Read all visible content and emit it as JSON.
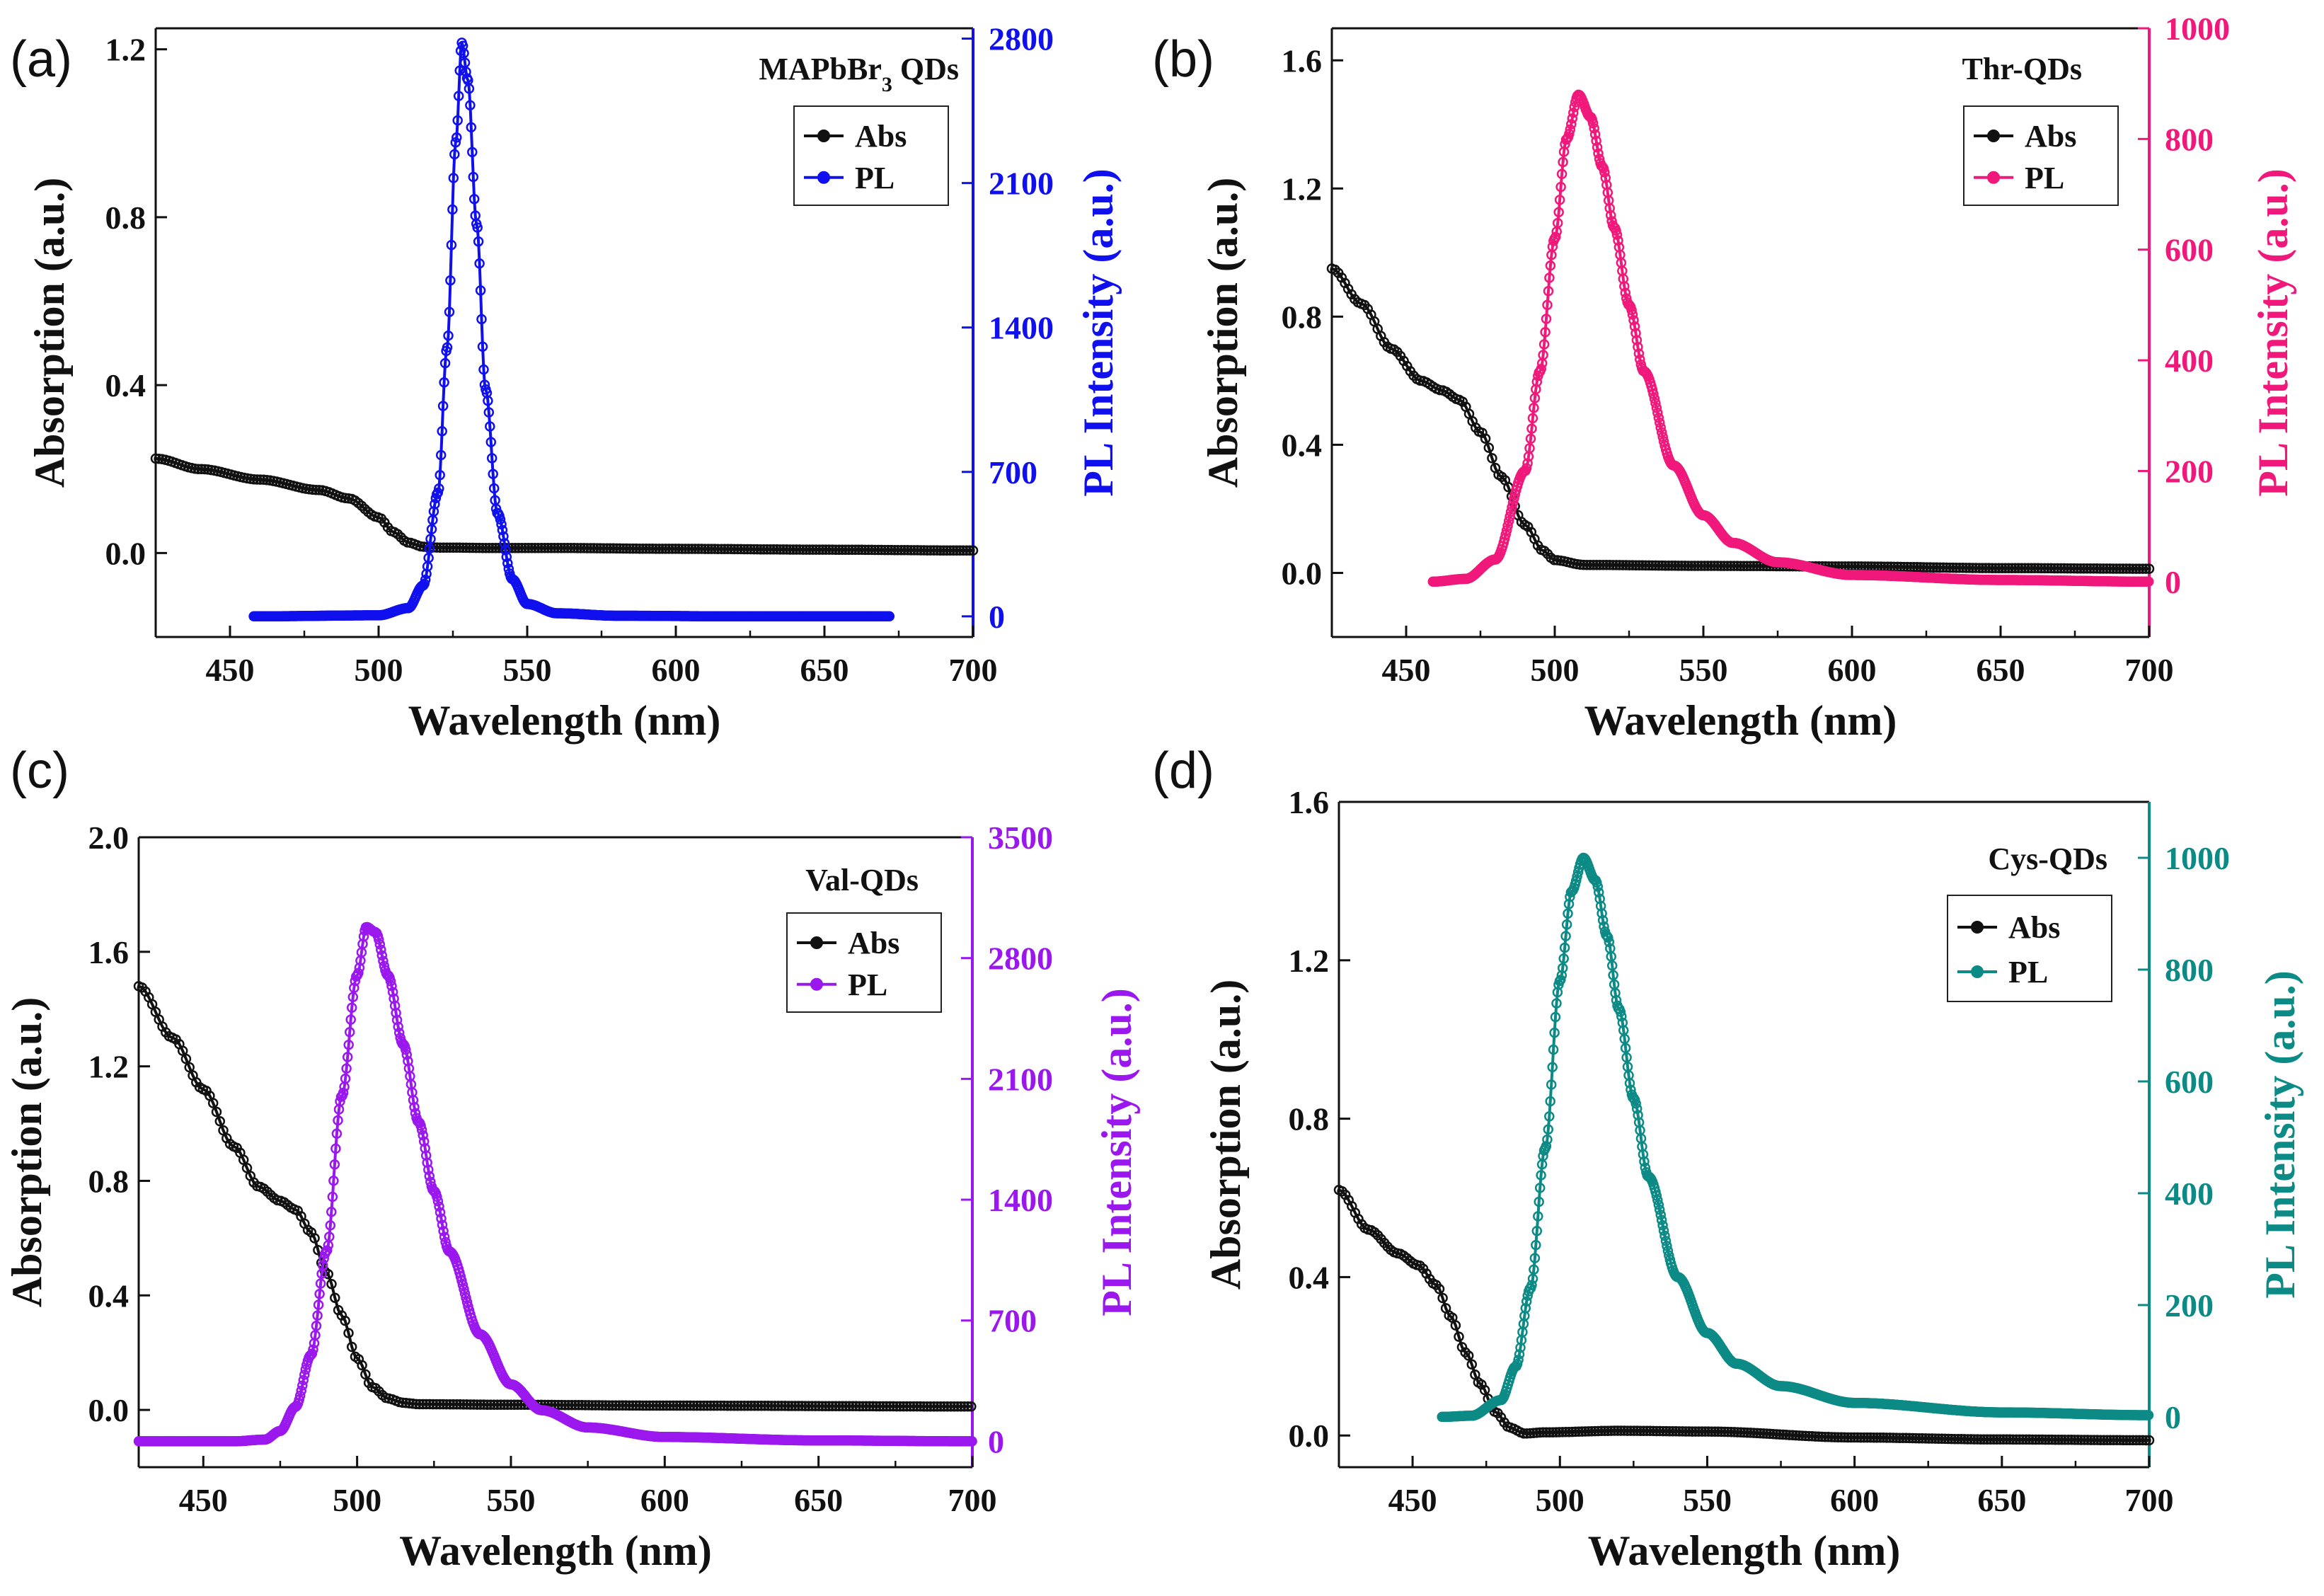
{
  "figure": {
    "panels": [
      "(a)",
      "(b)",
      "(c)",
      "(d)"
    ]
  },
  "chart_data": [
    {
      "type": "line",
      "panel": "(a)",
      "title": "MAPbBr3 QDs",
      "title_main": "MAPbBr",
      "title_sub": "3",
      "title_tail": " QDs",
      "xlabel": "Wavelength (nm)",
      "ylabel_left": "Absorption (a.u.)",
      "ylabel_right": "PL Intensity (a.u.)",
      "xlim": [
        425,
        700
      ],
      "xticks": [
        450,
        500,
        550,
        600,
        650,
        700
      ],
      "ylim_left": [
        -0.2,
        1.25
      ],
      "yticks_left": [
        "0.0",
        "0.4",
        "0.8",
        "1.2"
      ],
      "ytick_values_left": [
        0.0,
        0.4,
        0.8,
        1.2
      ],
      "ylim_right": [
        -100,
        2850
      ],
      "yticks_right": [
        "0",
        "700",
        "1400",
        "2100",
        "2800"
      ],
      "ytick_values_right": [
        0,
        700,
        1400,
        2100,
        2800
      ],
      "pl_color": "#1010ee",
      "legend": [
        "Abs",
        "PL"
      ],
      "series": [
        {
          "name": "Abs",
          "axis": "left",
          "x": [
            425,
            440,
            460,
            480,
            490,
            500,
            505,
            510,
            515,
            520,
            540,
            560,
            600,
            650,
            700
          ],
          "y": [
            0.225,
            0.2,
            0.175,
            0.15,
            0.13,
            0.085,
            0.05,
            0.025,
            0.015,
            0.013,
            0.012,
            0.012,
            0.01,
            0.008,
            0.006
          ]
        },
        {
          "name": "PL",
          "axis": "right",
          "x": [
            458,
            500,
            510,
            515,
            520,
            523,
            526,
            528,
            530,
            533,
            536,
            540,
            545,
            550,
            560,
            580,
            620,
            672
          ],
          "y": [
            0,
            5,
            40,
            150,
            600,
            1300,
            2300,
            2780,
            2600,
            1900,
            1100,
            500,
            180,
            60,
            15,
            3,
            0,
            0
          ]
        }
      ]
    },
    {
      "type": "line",
      "panel": "(b)",
      "title": "Thr-QDs",
      "xlabel": "Wavelength (nm)",
      "ylabel_left": "Absorption (a.u.)",
      "ylabel_right": "PL Intensity (a.u.)",
      "xlim": [
        425,
        700
      ],
      "xticks": [
        450,
        500,
        550,
        600,
        650,
        700
      ],
      "ylim_left": [
        -0.2,
        1.7
      ],
      "yticks_left": [
        "0.0",
        "0.4",
        "0.8",
        "1.2",
        "1.6"
      ],
      "ytick_values_left": [
        0.0,
        0.4,
        0.8,
        1.2,
        1.6
      ],
      "ylim_right": [
        -100,
        1000
      ],
      "yticks_right": [
        "0",
        "200",
        "400",
        "600",
        "800",
        "1000"
      ],
      "ytick_values_right": [
        0,
        200,
        400,
        600,
        800,
        1000
      ],
      "pl_color": "#f0187a",
      "legend": [
        "Abs",
        "PL"
      ],
      "series": [
        {
          "name": "Abs",
          "axis": "left",
          "x": [
            425,
            435,
            445,
            455,
            462,
            468,
            475,
            482,
            490,
            496,
            500,
            510,
            550,
            600,
            650,
            700
          ],
          "y": [
            0.95,
            0.84,
            0.7,
            0.6,
            0.57,
            0.54,
            0.44,
            0.3,
            0.15,
            0.07,
            0.04,
            0.025,
            0.022,
            0.02,
            0.015,
            0.013
          ]
        },
        {
          "name": "PL",
          "axis": "right",
          "x": [
            459,
            470,
            480,
            490,
            495,
            500,
            504,
            508,
            512,
            516,
            520,
            525,
            530,
            540,
            550,
            560,
            575,
            600,
            650,
            700
          ],
          "y": [
            0,
            5,
            40,
            200,
            380,
            620,
            800,
            880,
            840,
            750,
            640,
            500,
            380,
            210,
            120,
            70,
            35,
            12,
            3,
            0
          ]
        }
      ]
    },
    {
      "type": "line",
      "panel": "(c)",
      "title": "Val-QDs",
      "xlabel": "Wavelength (nm)",
      "ylabel_left": "Absorption (a.u.)",
      "ylabel_right": "PL Intensity (a.u.)",
      "xlim": [
        429,
        700
      ],
      "xticks": [
        450,
        500,
        550,
        600,
        650,
        700
      ],
      "ylim_left": [
        -0.2,
        2.0
      ],
      "yticks_left": [
        "0.0",
        "0.4",
        "0.8",
        "1.2",
        "1.6",
        "2.0"
      ],
      "ytick_values_left": [
        0.0,
        0.4,
        0.8,
        1.2,
        1.6,
        2.0
      ],
      "ylim_right": [
        -150,
        3500
      ],
      "yticks_right": [
        "0",
        "700",
        "1400",
        "2100",
        "2800",
        "3500"
      ],
      "ytick_values_right": [
        0,
        700,
        1400,
        2100,
        2800,
        3500
      ],
      "pl_color": "#9a18ee",
      "legend": [
        "Abs",
        "PL"
      ],
      "series": [
        {
          "name": "Abs",
          "axis": "left",
          "x": [
            429,
            440,
            450,
            460,
            468,
            475,
            480,
            485,
            490,
            495,
            500,
            505,
            510,
            515,
            520,
            550,
            600,
            700
          ],
          "y": [
            1.48,
            1.3,
            1.12,
            0.92,
            0.78,
            0.73,
            0.7,
            0.62,
            0.48,
            0.33,
            0.18,
            0.08,
            0.04,
            0.025,
            0.02,
            0.018,
            0.015,
            0.012
          ]
        },
        {
          "name": "PL",
          "axis": "right",
          "x": [
            429,
            460,
            470,
            475,
            480,
            485,
            490,
            495,
            500,
            503,
            506,
            510,
            515,
            520,
            525,
            530,
            540,
            550,
            560,
            575,
            600,
            650,
            700
          ],
          "y": [
            0,
            0,
            10,
            60,
            200,
            500,
            1100,
            2000,
            2700,
            2980,
            2950,
            2700,
            2300,
            1850,
            1450,
            1100,
            620,
            330,
            180,
            80,
            25,
            5,
            0
          ]
        }
      ]
    },
    {
      "type": "line",
      "panel": "(d)",
      "title": "Cys-QDs",
      "xlabel": "Wavelength (nm)",
      "ylabel_left": "Absorption (a.u.)",
      "ylabel_right": "PL Intensity (a.u.)",
      "xlim": [
        425,
        700
      ],
      "xticks": [
        450,
        500,
        550,
        600,
        650,
        700
      ],
      "ylim_left": [
        -0.08,
        1.6
      ],
      "yticks_left": [
        "0.0",
        "0.4",
        "0.8",
        "1.2",
        "1.6"
      ],
      "ytick_values_left": [
        0.0,
        0.4,
        0.8,
        1.2,
        1.6
      ],
      "ylim_right": [
        -90,
        1100
      ],
      "yticks_right": [
        "0",
        "200",
        "400",
        "600",
        "800",
        "1000"
      ],
      "ytick_values_right": [
        0,
        200,
        400,
        600,
        800,
        1000
      ],
      "pl_color": "#0c8a86",
      "legend": [
        "Abs",
        "PL"
      ],
      "series": [
        {
          "name": "Abs",
          "axis": "left",
          "x": [
            425,
            435,
            445,
            452,
            458,
            463,
            468,
            473,
            478,
            483,
            488,
            495,
            520,
            550,
            600,
            650,
            700
          ],
          "y": [
            0.62,
            0.52,
            0.46,
            0.43,
            0.38,
            0.3,
            0.21,
            0.13,
            0.06,
            0.02,
            0.005,
            0.008,
            0.012,
            0.01,
            -0.005,
            -0.01,
            -0.012
          ]
        },
        {
          "name": "PL",
          "axis": "right",
          "x": [
            460,
            470,
            480,
            485,
            490,
            495,
            500,
            504,
            508,
            512,
            516,
            520,
            525,
            530,
            540,
            550,
            560,
            575,
            600,
            650,
            700
          ],
          "y": [
            0,
            2,
            30,
            90,
            230,
            480,
            780,
            940,
            1000,
            960,
            860,
            730,
            570,
            430,
            250,
            150,
            95,
            55,
            25,
            8,
            3
          ]
        }
      ]
    }
  ]
}
